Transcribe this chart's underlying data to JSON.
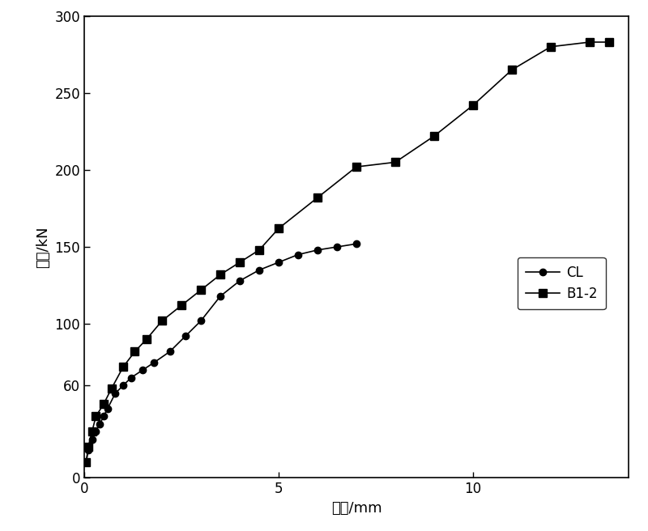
{
  "CL_x": [
    0.05,
    0.1,
    0.2,
    0.3,
    0.4,
    0.5,
    0.6,
    0.8,
    1.0,
    1.2,
    1.5,
    1.8,
    2.2,
    2.6,
    3.0,
    3.5,
    4.0,
    4.5,
    5.0,
    5.5,
    6.0,
    6.5,
    7.0
  ],
  "CL_y": [
    10,
    18,
    25,
    30,
    35,
    40,
    45,
    55,
    60,
    65,
    70,
    75,
    82,
    92,
    102,
    118,
    128,
    135,
    140,
    145,
    148,
    150,
    152
  ],
  "B12_x": [
    0.05,
    0.1,
    0.2,
    0.3,
    0.5,
    0.7,
    1.0,
    1.3,
    1.6,
    2.0,
    2.5,
    3.0,
    3.5,
    4.0,
    4.5,
    5.0,
    6.0,
    7.0,
    8.0,
    9.0,
    10.0,
    11.0,
    12.0,
    13.0,
    13.5
  ],
  "B12_y": [
    10,
    20,
    30,
    40,
    48,
    58,
    72,
    82,
    90,
    102,
    112,
    122,
    132,
    140,
    148,
    162,
    182,
    202,
    205,
    222,
    242,
    265,
    280,
    283,
    283
  ],
  "xlim": [
    0,
    14
  ],
  "ylim": [
    0,
    300
  ],
  "xticks": [
    0,
    5,
    10
  ],
  "yticks": [
    0,
    60,
    100,
    150,
    200,
    250,
    300
  ],
  "xlabel": "变形/mm",
  "ylabel": "荷载/kN",
  "line_color": "#000000",
  "bg_color": "#ffffff",
  "legend_CL": "CL",
  "legend_B12": "B1-2",
  "figsize": [
    8.0,
    6.56
  ],
  "dpi": 100
}
